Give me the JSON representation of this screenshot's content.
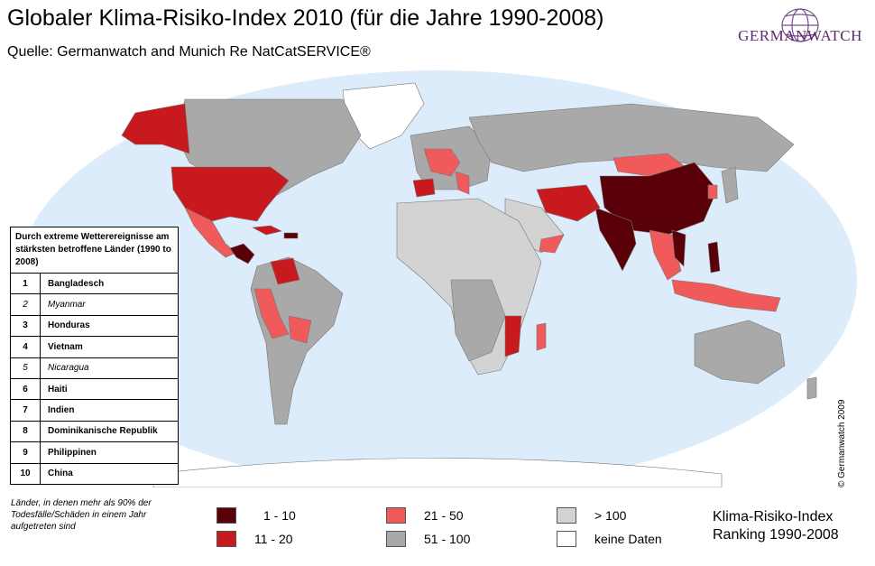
{
  "header": {
    "title": "Globaler Klima-Risiko-Index 2010 (für die Jahre 1990-2008)",
    "subtitle": "Quelle: Germanwatch and Munich Re NatCatSERVICE®"
  },
  "logo": {
    "text": "GERMANWATCH"
  },
  "ranking_table": {
    "header": "Durch extreme Wetterereignisse am stärksten betroffene Länder (1990 to 2008)",
    "rows": [
      {
        "rank": "1",
        "country": "Bangladesch"
      },
      {
        "rank": "2",
        "country": "Myanmar"
      },
      {
        "rank": "3",
        "country": "Honduras"
      },
      {
        "rank": "4",
        "country": "Vietnam"
      },
      {
        "rank": "5",
        "country": "Nicaragua"
      },
      {
        "rank": "6",
        "country": "Haiti"
      },
      {
        "rank": "7",
        "country": "Indien"
      },
      {
        "rank": "8",
        "country": "Dominikanische Republik"
      },
      {
        "rank": "9",
        "country": "Philippinen"
      },
      {
        "rank": "10",
        "country": "China"
      }
    ]
  },
  "footnote": "Länder, in denen mehr als 90% der Todesfälle/Schäden in einem Jahr aufgetreten sind",
  "legend": {
    "items": [
      {
        "label": "1 - 10",
        "color": "#5a0008"
      },
      {
        "label": "11 - 20",
        "color": "#c8191e"
      },
      {
        "label": "21  -  50",
        "color": "#f05a5a"
      },
      {
        "label": "51  -  100",
        "color": "#a9a9a9"
      },
      {
        "label": "> 100",
        "color": "#d3d3d3"
      },
      {
        "label": "keine Daten",
        "color": "#ffffff"
      }
    ],
    "title_line1": "Klima-Risiko-Index",
    "title_line2": "Ranking 1990-2008"
  },
  "copyright": "© Germanwatch 2009",
  "colors": {
    "ocean": "#dcecfa",
    "land_grey": "#a9a9a9",
    "land_light": "#d3d3d3"
  }
}
